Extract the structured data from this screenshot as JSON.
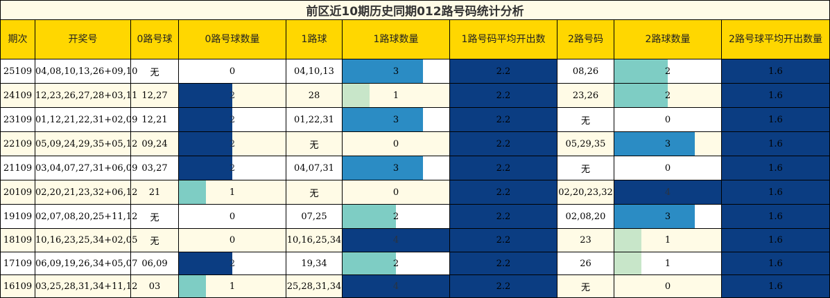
{
  "title": "前区近10期历史同期012路号码统计分析",
  "headers": [
    "期次",
    "开奖号",
    "0路号球",
    "0路号球数量",
    "1路球",
    "1路球数量",
    "1路号码平均开出数",
    "2路号码",
    "2路球数量",
    "2路号球平均开出数量"
  ],
  "max_count": 4,
  "colors": {
    "c1_light": "#c8e6c9",
    "c1_teal": "#7ecdc4",
    "c3": "#2b8cc4",
    "c4": "#0b3d82",
    "c2_from_zero": "#0b3d82"
  },
  "rows": [
    {
      "period": "25109",
      "draw": "04,08,10,13,26+09,10",
      "r0": "无",
      "r0_count": 0,
      "r1": "04,10,13",
      "r1_count": 3,
      "r1_avg": "2.2",
      "r2": "08,26",
      "r2_count": 2,
      "r2_avg": "1.6"
    },
    {
      "period": "24109",
      "draw": "12,23,26,27,28+03,11",
      "r0": "12,27",
      "r0_count": 2,
      "r1": "28",
      "r1_count": 1,
      "r1_avg": "2.2",
      "r2": "23,26",
      "r2_count": 2,
      "r2_avg": "1.6"
    },
    {
      "period": "23109",
      "draw": "01,12,21,22,31+02,09",
      "r0": "12,21",
      "r0_count": 2,
      "r1": "01,22,31",
      "r1_count": 3,
      "r1_avg": "2.2",
      "r2": "无",
      "r2_count": 0,
      "r2_avg": "1.6"
    },
    {
      "period": "22109",
      "draw": "05,09,24,29,35+05,12",
      "r0": "09,24",
      "r0_count": 2,
      "r1": "无",
      "r1_count": 0,
      "r1_avg": "2.2",
      "r2": "05,29,35",
      "r2_count": 3,
      "r2_avg": "1.6"
    },
    {
      "period": "21109",
      "draw": "03,04,07,27,31+06,09",
      "r0": "03,27",
      "r0_count": 2,
      "r1": "04,07,31",
      "r1_count": 3,
      "r1_avg": "2.2",
      "r2": "无",
      "r2_count": 0,
      "r2_avg": "1.6"
    },
    {
      "period": "20109",
      "draw": "02,20,21,23,32+06,12",
      "r0": "21",
      "r0_count": 1,
      "r1": "无",
      "r1_count": 0,
      "r1_avg": "2.2",
      "r2": "02,20,23,32",
      "r2_count": 4,
      "r2_avg": "1.6"
    },
    {
      "period": "19109",
      "draw": "02,07,08,20,25+11,12",
      "r0": "无",
      "r0_count": 0,
      "r1": "07,25",
      "r1_count": 2,
      "r1_avg": "2.2",
      "r2": "02,08,20",
      "r2_count": 3,
      "r2_avg": "1.6"
    },
    {
      "period": "18109",
      "draw": "10,16,23,25,34+02,05",
      "r0": "无",
      "r0_count": 0,
      "r1": "10,16,25,34",
      "r1_count": 4,
      "r1_avg": "2.2",
      "r2": "23",
      "r2_count": 1,
      "r2_avg": "1.6"
    },
    {
      "period": "17109",
      "draw": "06,09,19,26,34+05,07",
      "r0": "06,09",
      "r0_count": 2,
      "r1": "19,34",
      "r1_count": 2,
      "r1_avg": "2.2",
      "r2": "26",
      "r2_count": 1,
      "r2_avg": "1.6"
    },
    {
      "period": "16109",
      "draw": "03,25,28,31,34+11,12",
      "r0": "03",
      "r0_count": 1,
      "r1": "25,28,31,34",
      "r1_count": 4,
      "r1_avg": "2.2",
      "r2": "无",
      "r2_count": 0,
      "r2_avg": "1.6"
    }
  ]
}
